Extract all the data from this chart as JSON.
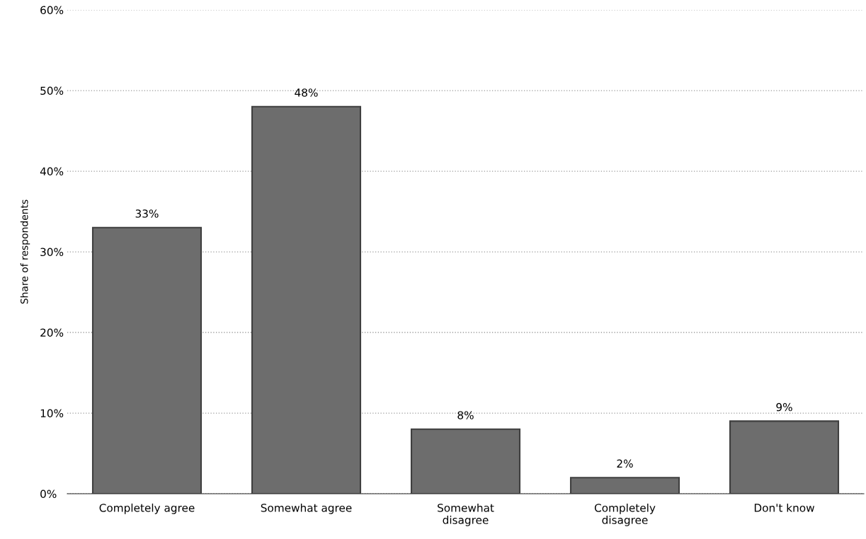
{
  "chart_data": {
    "type": "bar",
    "ylabel": "Share of respondents",
    "categories": [
      "Completely agree",
      "Somewhat agree",
      "Somewhat\ndisagree",
      "Completely\ndisagree",
      "Don't know"
    ],
    "values": [
      33,
      48,
      8,
      2,
      9
    ],
    "color": "#6d6d6d",
    "value_labels": [
      "33%",
      "48%",
      "8%",
      "2%",
      "9%"
    ],
    "ylim": [
      0,
      60
    ],
    "yticks": [
      {
        "value": 0,
        "label": "0%"
      },
      {
        "value": 10,
        "label": "10%"
      },
      {
        "value": 20,
        "label": "20%"
      },
      {
        "value": 30,
        "label": "30%"
      },
      {
        "value": 40,
        "label": "40%"
      },
      {
        "value": 50,
        "label": "50%"
      },
      {
        "value": 60,
        "label": "60%"
      }
    ],
    "grid": "y",
    "legend": false
  }
}
